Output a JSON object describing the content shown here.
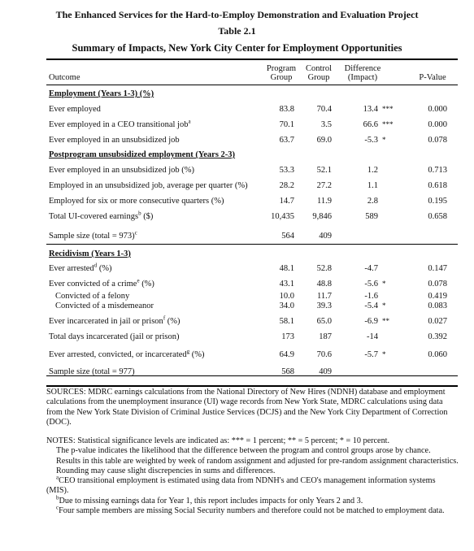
{
  "header": {
    "project_title": "The Enhanced Services for the Hard-to-Employ Demonstration and Evaluation Project",
    "table_number": "Table 2.1",
    "table_title": "Summary of Impacts, New York City Center for Employment Opportunities"
  },
  "columns": {
    "outcome": "Outcome",
    "program_1": "Program",
    "program_2": "Group",
    "control_1": "Control",
    "control_2": "Group",
    "difference_1": "Difference",
    "difference_2": "(Impact)",
    "pvalue": "P-Value"
  },
  "rows": [
    {
      "type": "section",
      "label": "Employment (Years 1-3) (%)"
    },
    {
      "label": "Ever employed",
      "program": "83.8",
      "control": "70.4",
      "diff": "13.4",
      "stars": "***",
      "p": "0.000"
    },
    {
      "label": "Ever employed in a CEO transitional job",
      "sup": "a",
      "program": "70.1",
      "control": "3.5",
      "diff": "66.6",
      "stars": "***",
      "p": "0.000"
    },
    {
      "label": "Ever employed in an unsubsidized job",
      "program": "63.7",
      "control": "69.0",
      "diff": "-5.3",
      "stars": "*",
      "p": "0.078"
    },
    {
      "type": "section",
      "label": "Postprogram unsubsidized employment  (Years 2-3)"
    },
    {
      "label": "Ever employed in an unsubsidized job (%)",
      "program": "53.3",
      "control": "52.1",
      "diff": "1.2",
      "stars": "",
      "p": "0.713"
    },
    {
      "label": "Employed in an unsubsidized job, average per quarter (%)",
      "program": "28.2",
      "control": "27.2",
      "diff": "1.1",
      "stars": "",
      "p": "0.618"
    },
    {
      "label": "Employed for six or more consecutive quarters (%)",
      "program": "14.7",
      "control": "11.9",
      "diff": "2.8",
      "stars": "",
      "p": "0.195"
    },
    {
      "label": "Total UI-covered earnings",
      "sup": "b",
      "suffix": " ($)",
      "program": "10,435",
      "control": "9,846",
      "diff": "589",
      "stars": "",
      "p": "0.658"
    },
    {
      "label": "Sample size (total = 973)",
      "sup": "c",
      "program": "564",
      "control": "409",
      "diff": "",
      "stars": "",
      "p": ""
    },
    {
      "type": "section",
      "label": "Recidivism (Years 1-3)"
    },
    {
      "label": "Ever arrested",
      "sup": "d",
      "suffix": " (%)",
      "program": "48.1",
      "control": "52.8",
      "diff": "-4.7",
      "stars": "",
      "p": "0.147"
    },
    {
      "label": "Ever convicted of a crime",
      "sup": "e",
      "suffix": " (%)",
      "program": "43.1",
      "control": "48.8",
      "diff": "-5.6",
      "stars": "*",
      "p": "0.078"
    },
    {
      "label": "Convicted of a felony",
      "indent": true,
      "program": "10.0",
      "control": "11.7",
      "diff": "-1.6",
      "stars": "",
      "p": "0.419"
    },
    {
      "label": "Convicted of a misdemeanor",
      "indent": true,
      "program": "34.0",
      "control": "39.3",
      "diff": "-5.4",
      "stars": "*",
      "p": "0.083"
    },
    {
      "label": "Ever incarcerated in jail or prison",
      "sup": "f",
      "suffix": " (%)",
      "program": "58.1",
      "control": "65.0",
      "diff": "-6.9",
      "stars": "**",
      "p": "0.027"
    },
    {
      "label": "Total days incarcerated (jail or prison)",
      "program": "173",
      "control": "187",
      "diff": "-14",
      "stars": "",
      "p": "0.392"
    },
    {
      "label": "Ever arrested, convicted, or incarcerated",
      "sup": "g",
      "suffix": " (%)",
      "program": "64.9",
      "control": "70.6",
      "diff": "-5.7",
      "stars": "*",
      "p": "0.060"
    },
    {
      "label": "Sample size (total = 977)",
      "program": "568",
      "control": "409",
      "diff": "",
      "stars": "",
      "p": ""
    }
  ],
  "sources": "SOURCES: MDRC earnings calculations from the National Directory of New Hires (NDNH) database and employment calculations from the unemployment insurance (UI) wage records from New York State, MDRC calculations using data from the New York State Division of Criminal Justice Services (DCJS) and the New York City Department of Correction (DOC).",
  "notes": {
    "significance": "NOTES: Statistical significance levels are indicated as: *** = 1 percent; ** = 5 percent; * = 10 percent.",
    "pvalue": "The p-value indicates the likelihood that the difference between the program and control groups arose by chance.",
    "weighting": "Results in this table are weighted by week of random assignment and adjusted for pre-random assignment characteristics.",
    "rounding": "Rounding may cause slight discrepencies in sums and differences.",
    "note_a_mark": "a",
    "note_a": "CEO transitional employment is estimated using data from NDNH's and CEO's management information systems (MIS).",
    "note_b_mark": "b",
    "note_b": "Due to missing earnings data for Year 1, this report includes impacts for only Years 2 and 3.",
    "note_c_mark": "c",
    "note_c": "Four sample members are missing Social Security numbers and therefore could not be matched to employment data."
  }
}
